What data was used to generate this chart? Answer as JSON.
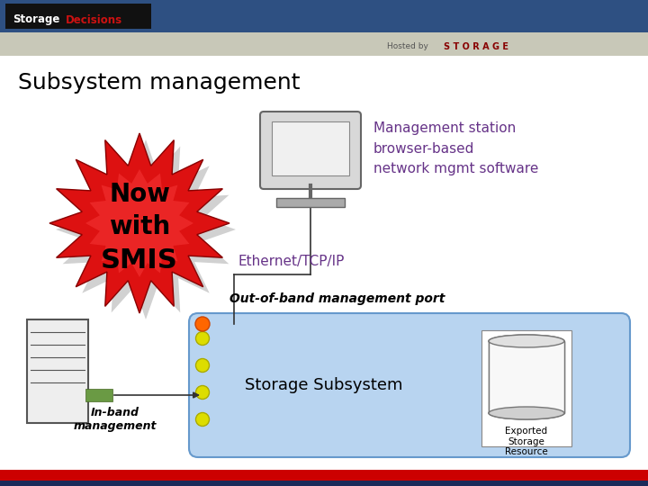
{
  "title": "Subsystem management",
  "title_fontsize": 18,
  "title_color": "#000000",
  "background_color": "#ffffff",
  "header_bar_color": "#2e5082",
  "header_bar2_color": "#c8ccc8",
  "footer_bar_color": "#cc0000",
  "footer_bar2_color": "#1a2a5a",
  "smis_text_color": "#000000",
  "smis_burst_color1": "#cc0000",
  "management_station_text": "Management station\nbrowser-based\nnetwork mgmt software",
  "management_station_color": "#663388",
  "ethernet_text": "Ethernet/TCP/IP",
  "ethernet_color": "#663388",
  "outofband_text": "Out-of-band management port",
  "outofband_color": "#000000",
  "inband_text": "In-band\nmanagement",
  "inband_color": "#000000",
  "storage_subsystem_text": "Storage Subsystem",
  "storage_subsystem_color": "#000000",
  "exported_text": "Exported\nStorage\nResource",
  "exported_color": "#000000",
  "subsystem_box_color": "#b8d4f0",
  "subsystem_box_edge": "#6699cc"
}
